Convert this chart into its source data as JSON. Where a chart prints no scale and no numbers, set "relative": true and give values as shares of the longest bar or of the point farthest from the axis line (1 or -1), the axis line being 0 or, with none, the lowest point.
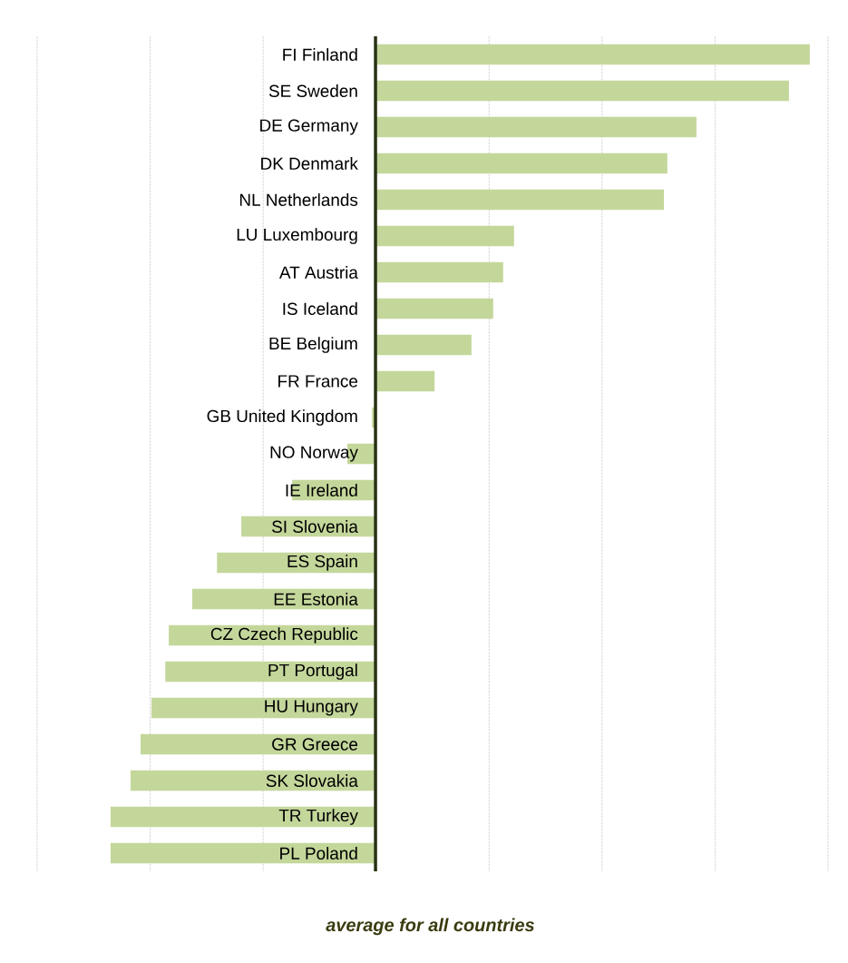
{
  "chart_data": {
    "type": "bar",
    "orientation": "horizontal",
    "relative": true,
    "grid": "x",
    "color": "#c4d79b",
    "xlabel": "average for  all countries",
    "categories": [
      "FI  Finland",
      "SE  Sweden",
      "DE  Germany",
      "DK  Denmark",
      "NL  Netherlands",
      "LU  Luxembourg",
      "AT  Austria",
      "IS  Iceland",
      "BE  Belgium",
      "FR  France",
      "GB  United Kingdom",
      "NO  Norway",
      "IE  Ireland",
      "SI  Slovenia",
      "ES  Spain",
      "EE  Estonia",
      "CZ  Czech Republic",
      "PT  Portugal",
      "HU  Hungary",
      "GR  Greece",
      "SK  Slovakia",
      "TR  Turkey",
      "PL  Poland"
    ],
    "values": [
      1.0,
      0.952,
      0.739,
      0.672,
      0.664,
      0.319,
      0.294,
      0.271,
      0.221,
      0.136,
      -0.008,
      -0.065,
      -0.192,
      -0.309,
      -0.365,
      -0.422,
      -0.476,
      -0.484,
      -0.516,
      -0.541,
      -0.564,
      -0.61,
      -0.61
    ]
  }
}
